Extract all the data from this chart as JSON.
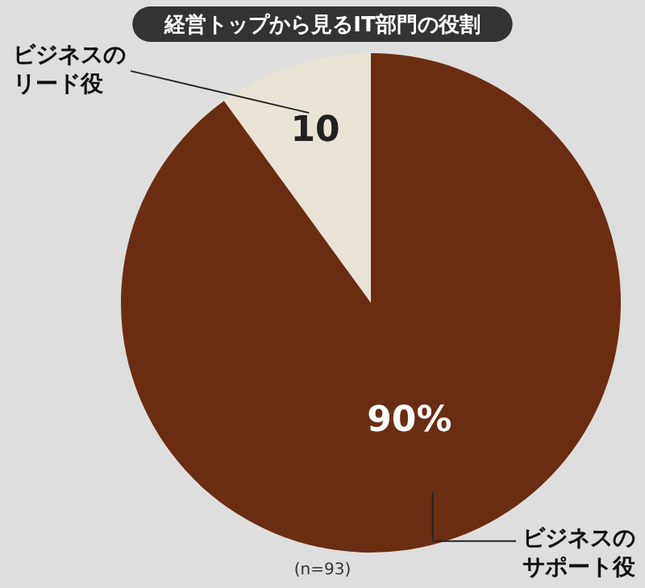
{
  "chart_data": {
    "type": "pie",
    "title": "経営トップから見るIT部門の役割",
    "categories": [
      "ビジネスのリード役",
      "ビジネスのサポート役"
    ],
    "values": [
      10,
      90
    ],
    "colors": [
      "#e9e3d6",
      "#6b2d12"
    ],
    "value_labels": [
      "10",
      "90%"
    ],
    "legend": false,
    "annotations": [
      "(n=93)"
    ]
  }
}
